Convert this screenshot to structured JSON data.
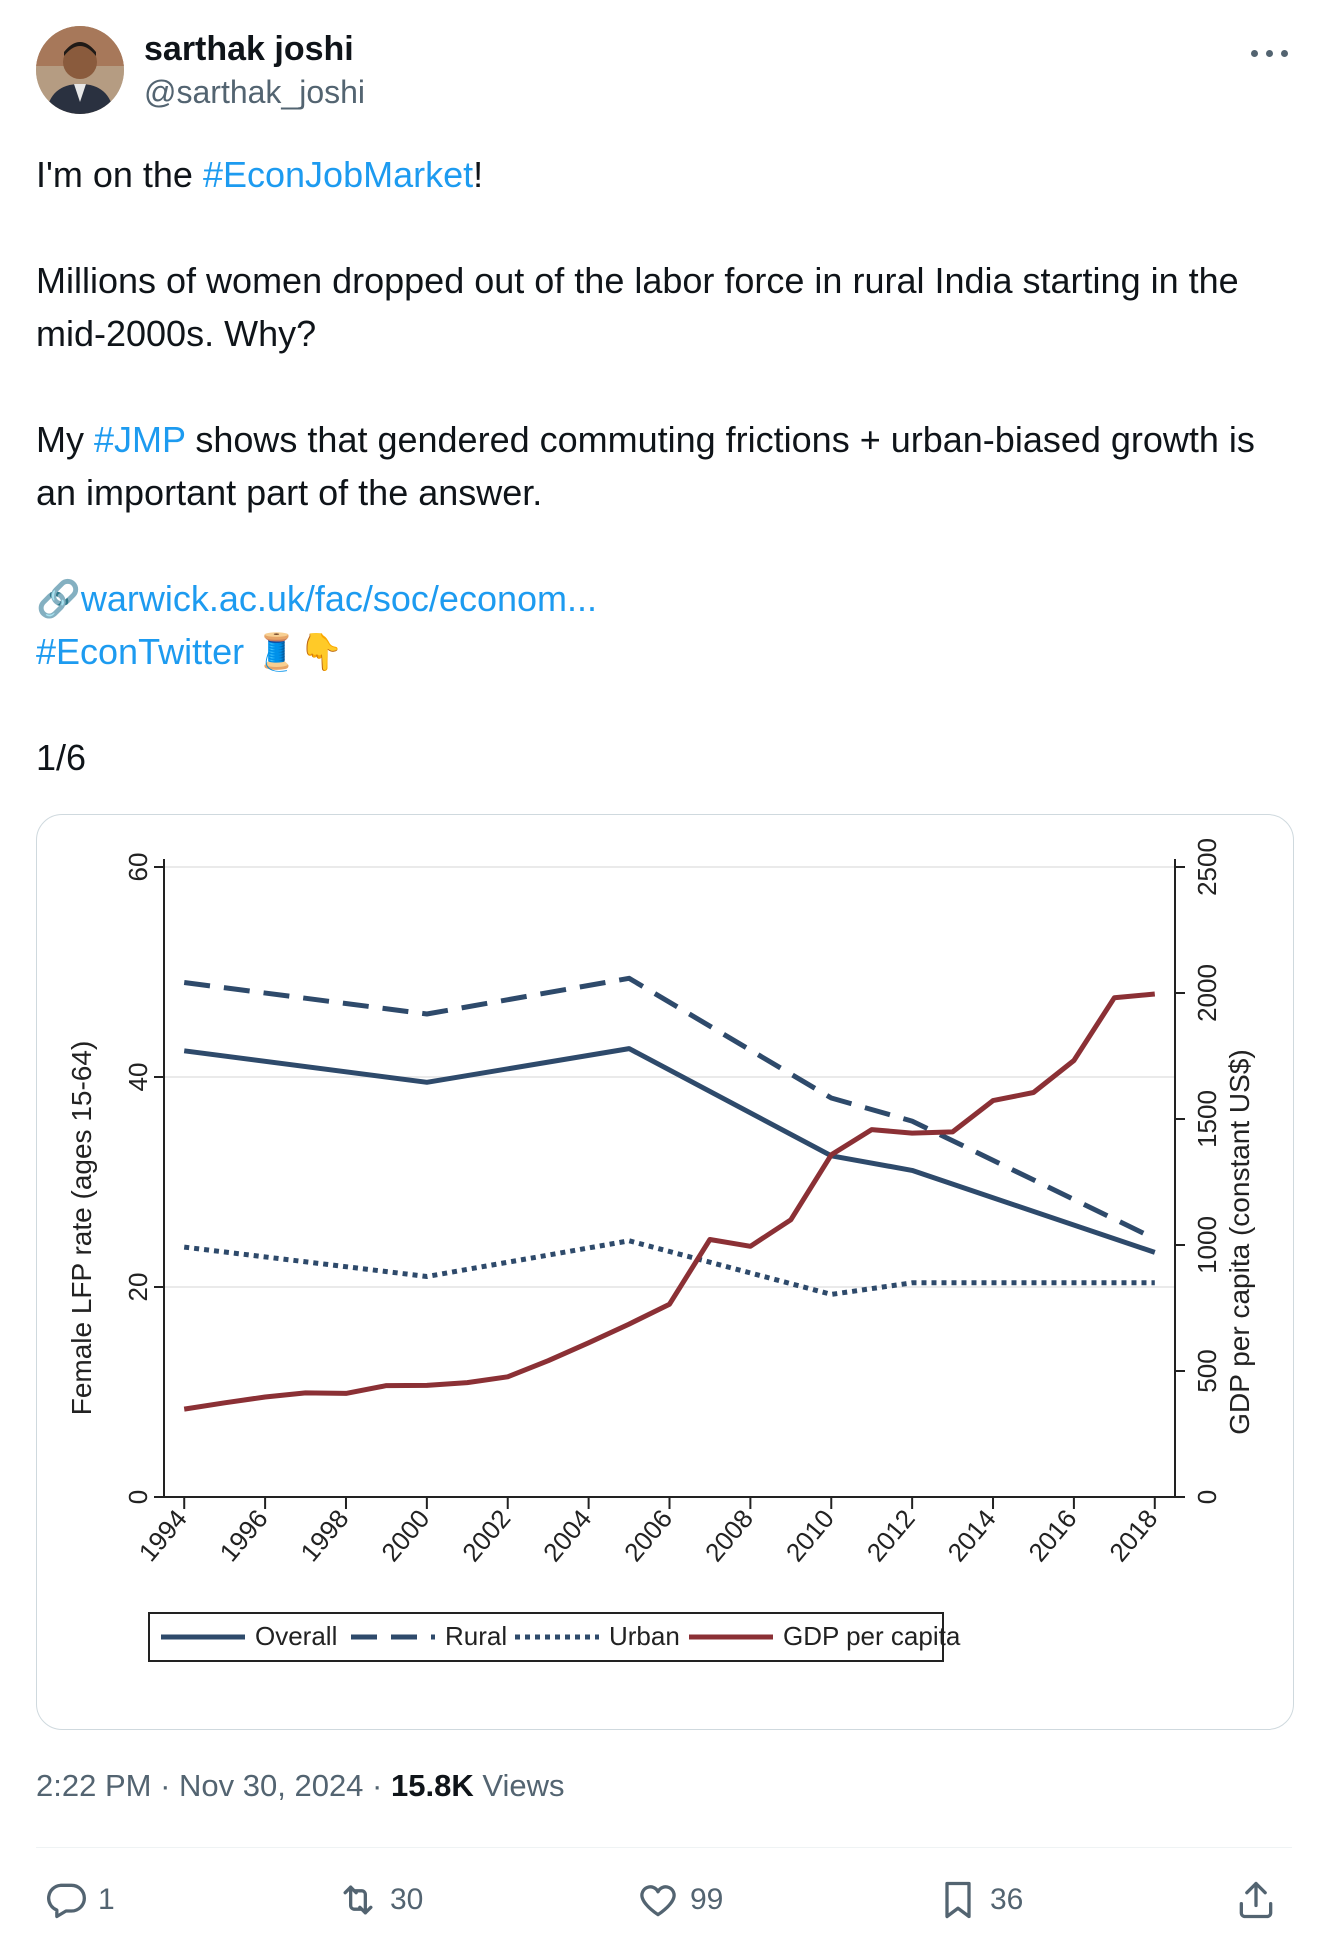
{
  "author": {
    "name": "sarthak joshi",
    "handle": "@sarthak_joshi"
  },
  "post": {
    "line1_prefix": "I'm on the ",
    "line1_hashtag": "#EconJobMarket",
    "line1_suffix": "!",
    "para2": "Millions of women dropped out of the labor force in rural India starting in the mid-2000s. Why?",
    "para3_prefix": "My ",
    "para3_hashtag": "#JMP",
    "para3_suffix": " shows that gendered commuting frictions + urban-biased growth is an important part of the answer.",
    "link_icon": "🔗",
    "link_text": "warwick.ac.uk/fac/soc/econom...",
    "hashtag_econtwitter": "#EconTwitter",
    "emoji": "🧵👇",
    "thread_count": "1/6"
  },
  "chart_data": {
    "type": "line",
    "x": [
      1994,
      2000,
      2005,
      2010,
      2012,
      2018
    ],
    "xticks": [
      "1994",
      "1996",
      "1998",
      "2000",
      "2002",
      "2004",
      "2006",
      "2008",
      "2010",
      "2012",
      "2014",
      "2016",
      "2018"
    ],
    "ylabel": "Female LFP rate (ages 15-64)",
    "ylim": [
      0,
      60
    ],
    "yticks": [
      "0",
      "20",
      "40",
      "60"
    ],
    "y2label": "GDP per capita (constant US$)",
    "y2lim": [
      0,
      2500
    ],
    "y2ticks": [
      "0",
      "500",
      "1000",
      "1500",
      "2000",
      "2500"
    ],
    "series": [
      {
        "name": "Overall",
        "style": "solid",
        "color": "#2e4a6b",
        "axis": "left",
        "x": [
          1994,
          2000,
          2005,
          2010,
          2012,
          2018
        ],
        "values": [
          42.5,
          39.5,
          42.7,
          32.5,
          31.1,
          23.3
        ]
      },
      {
        "name": "Rural",
        "style": "dashed",
        "color": "#2e4a6b",
        "axis": "left",
        "x": [
          1994,
          2000,
          2005,
          2010,
          2012,
          2018
        ],
        "values": [
          49,
          46,
          49.4,
          38,
          35.8,
          24.6
        ]
      },
      {
        "name": "Urban",
        "style": "dotted",
        "color": "#2e4a6b",
        "axis": "left",
        "x": [
          1994,
          2000,
          2005,
          2010,
          2012,
          2018
        ],
        "values": [
          23.8,
          21,
          24.4,
          19.3,
          20.4,
          20.4
        ]
      },
      {
        "name": "GDP per capita",
        "style": "solid",
        "color": "#8b3035",
        "axis": "right",
        "x": [
          1994,
          1995,
          1996,
          1997,
          1998,
          1999,
          2000,
          2001,
          2002,
          2003,
          2004,
          2005,
          2006,
          2007,
          2008,
          2009,
          2010,
          2011,
          2012,
          2013,
          2014,
          2015,
          2016,
          2017,
          2018
        ],
        "values": [
          349,
          374,
          397,
          413,
          411,
          442,
          443,
          454,
          477,
          541,
          612,
          686,
          765,
          1022,
          995,
          1100,
          1358,
          1458,
          1444,
          1449,
          1573,
          1605,
          1732,
          1981,
          1996
        ]
      }
    ],
    "legend": [
      "Overall",
      "Rural",
      "Urban",
      "GDP per capita"
    ],
    "legend_position": "bottom"
  },
  "meta": {
    "time": "2:22 PM",
    "sep1": " · ",
    "date": "Nov 30, 2024",
    "sep2": " · ",
    "views_count": "15.8K",
    "views_label": " Views"
  },
  "actions": {
    "replies": "1",
    "reposts": "30",
    "likes": "99",
    "bookmarks": "36"
  },
  "colors": {
    "link": "#1d9bf0",
    "series_blue": "#2e4a6b",
    "series_red": "#8b3035"
  }
}
